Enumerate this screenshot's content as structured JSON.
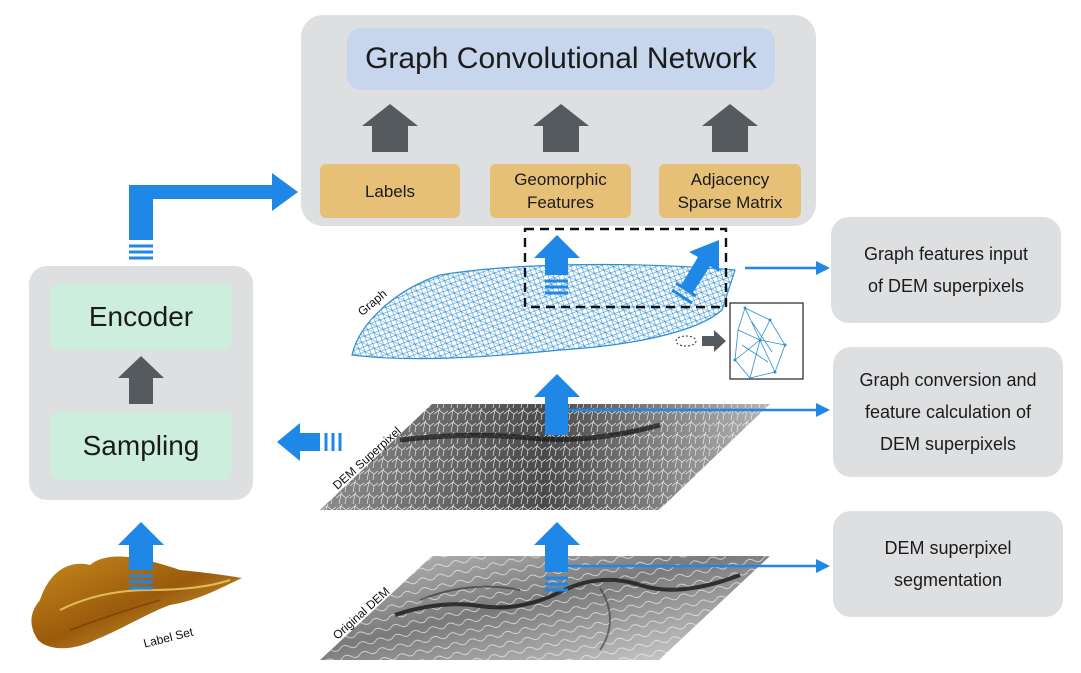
{
  "gcn": {
    "title": "Graph Convolutional Network",
    "inputs": [
      {
        "label": "Labels"
      },
      {
        "label": "Geomorphic\nFeatures"
      },
      {
        "label": "Adjacency\nSparse Matrix"
      }
    ]
  },
  "left_panel": {
    "encoder": "Encoder",
    "sampling": "Sampling"
  },
  "layers": {
    "graph": "Graph",
    "superpixel": "DEM Superpixel",
    "original": "Original DEM",
    "label_set": "Label Set"
  },
  "side_notes": [
    {
      "text": "Graph features input\nof DEM superpixels"
    },
    {
      "text": "Graph conversion and\nfeature calculation of\nDEM superpixels"
    },
    {
      "text": "DEM superpixel\nsegmentation"
    }
  ],
  "colors": {
    "panel": "#dedfe1",
    "title_box": "#c7d6ec",
    "orange_box": "#e7c077",
    "green_box": "#cdeedd",
    "blue_arrow": "#1f87e5",
    "dark_arrow": "#555a5e",
    "graph_mesh": "#2f8fd0"
  }
}
